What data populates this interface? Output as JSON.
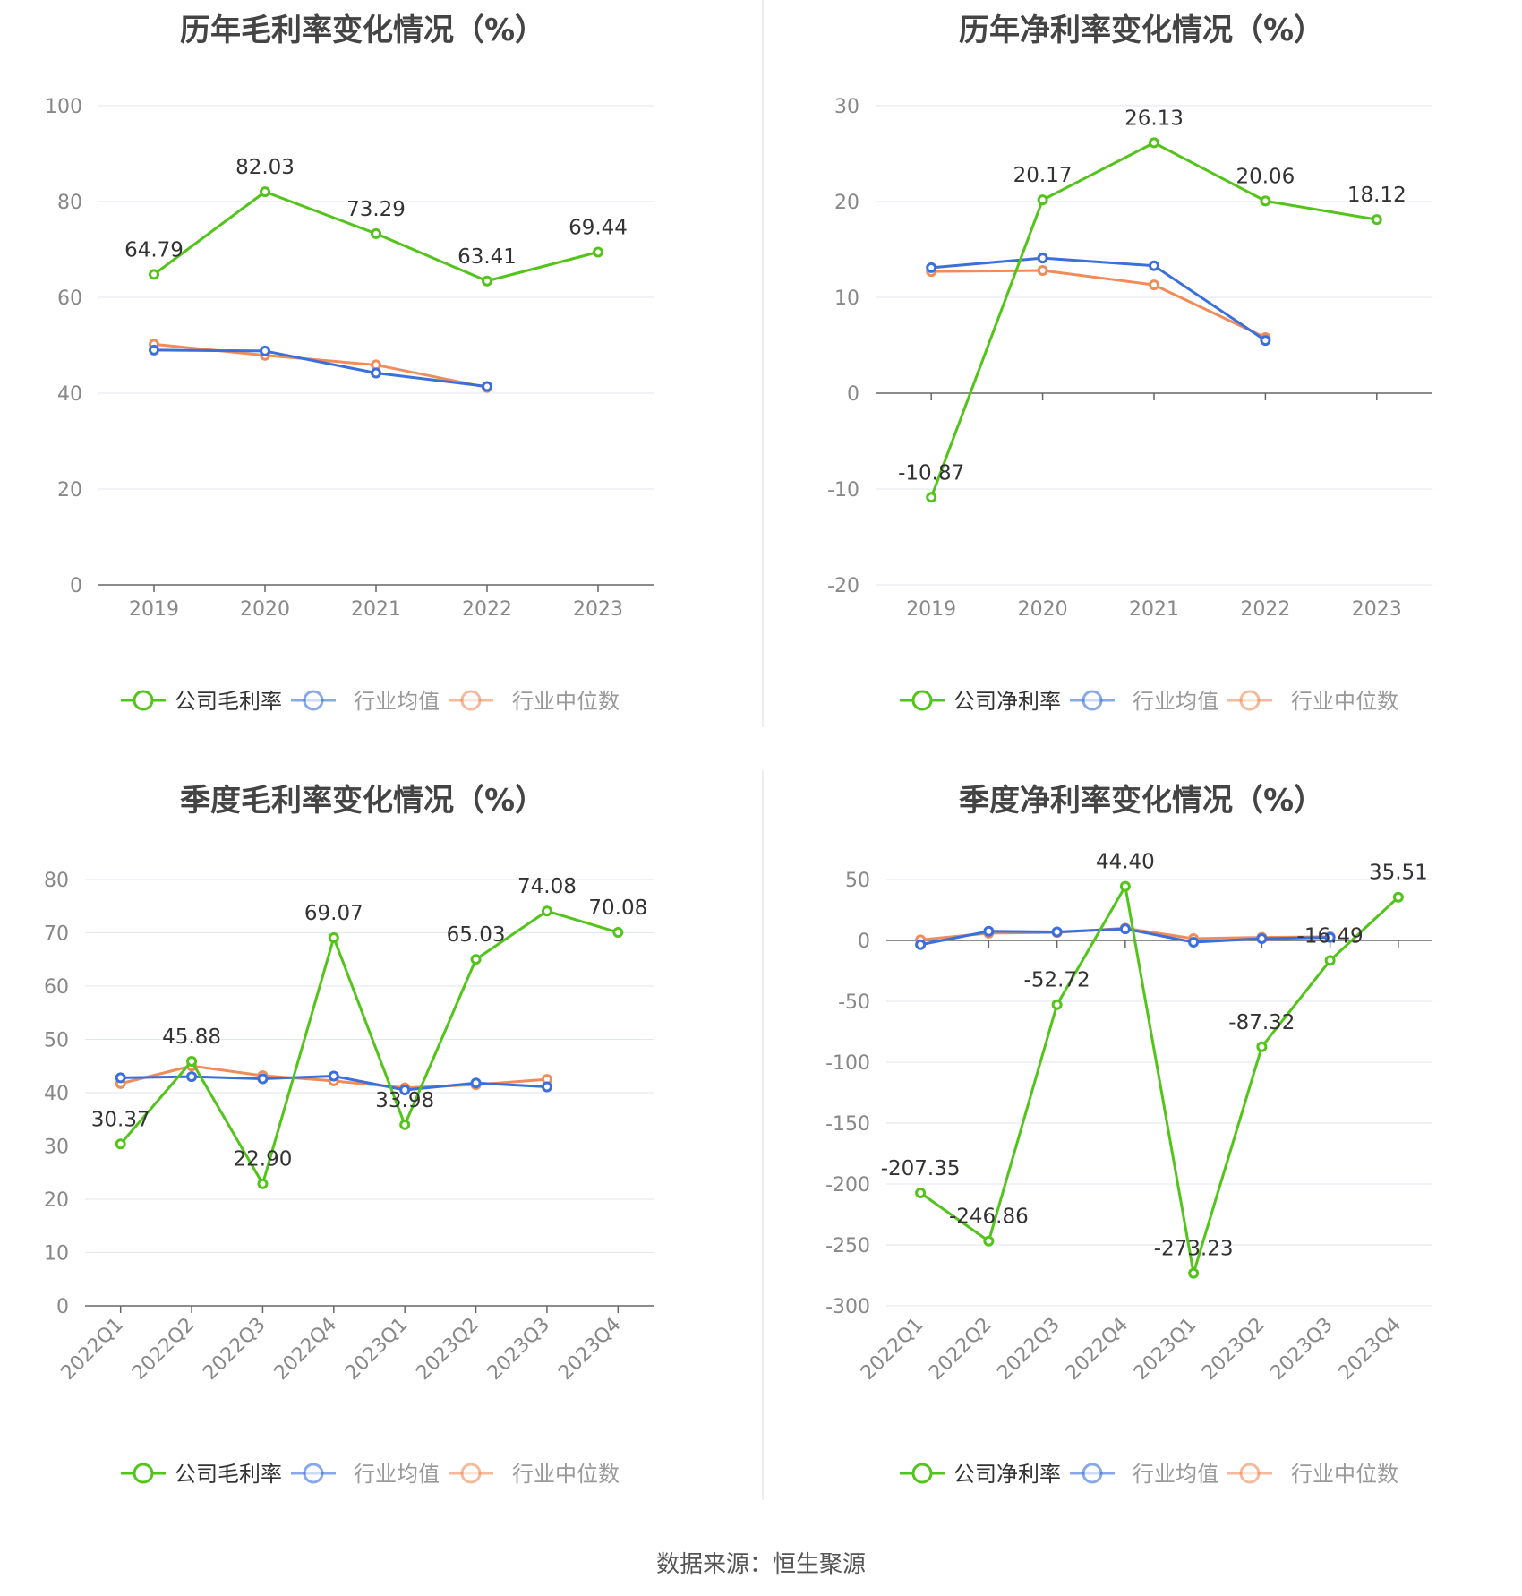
{
  "source": "数据来源：恒生聚源",
  "colors": {
    "company": "#52c41a",
    "avg": "#3a6fdc",
    "median": "#f08c5a",
    "grid": "#e2e6f0",
    "axis": "#666666"
  },
  "chart_data": [
    {
      "type": "line",
      "title": "历年毛利率变化情况（%）",
      "categories": [
        "2019",
        "2020",
        "2021",
        "2022",
        "2023"
      ],
      "ylim": [
        0,
        100
      ],
      "yticks": [
        0,
        20,
        40,
        60,
        80,
        100
      ],
      "grid": true,
      "legend_position": "bottom",
      "series": [
        {
          "name": "公司毛利率",
          "values": [
            64.79,
            82.03,
            73.29,
            63.41,
            69.44
          ],
          "labels": [
            "64.79",
            "82.03",
            "73.29",
            "63.41",
            "69.44"
          ]
        },
        {
          "name": "行业均值",
          "values": [
            49.0,
            48.8,
            44.2,
            41.4,
            null
          ]
        },
        {
          "name": "行业中位数",
          "values": [
            50.2,
            47.9,
            45.9,
            41.2,
            null
          ]
        }
      ]
    },
    {
      "type": "line",
      "title": "历年净利率变化情况（%）",
      "categories": [
        "2019",
        "2020",
        "2021",
        "2022",
        "2023"
      ],
      "ylim": [
        -20,
        30
      ],
      "yticks": [
        -20,
        -10,
        0,
        10,
        20,
        30
      ],
      "grid": true,
      "legend_position": "bottom",
      "series": [
        {
          "name": "公司净利率",
          "values": [
            -10.87,
            20.17,
            26.13,
            20.06,
            18.12
          ],
          "labels": [
            "-10.87",
            "20.17",
            "26.13",
            "20.06",
            "18.12"
          ]
        },
        {
          "name": "行业均值",
          "values": [
            13.1,
            14.1,
            13.3,
            5.5,
            null
          ]
        },
        {
          "name": "行业中位数",
          "values": [
            12.7,
            12.8,
            11.3,
            5.8,
            null
          ]
        }
      ]
    },
    {
      "type": "line",
      "title": "季度毛利率变化情况（%）",
      "categories": [
        "2022Q1",
        "2022Q2",
        "2022Q3",
        "2022Q4",
        "2023Q1",
        "2023Q2",
        "2023Q3",
        "2023Q4"
      ],
      "ylim": [
        0,
        80
      ],
      "yticks": [
        0,
        10,
        20,
        30,
        40,
        50,
        60,
        70,
        80
      ],
      "grid": true,
      "legend_position": "bottom",
      "series": [
        {
          "name": "公司毛利率",
          "values": [
            30.37,
            45.88,
            22.9,
            69.07,
            33.98,
            65.03,
            74.08,
            70.08
          ],
          "labels": [
            "30.37",
            "45.88",
            "22.90",
            "69.07",
            "33.98",
            "65.03",
            "74.08",
            "70.08"
          ]
        },
        {
          "name": "行业均值",
          "values": [
            42.8,
            43.0,
            42.6,
            43.1,
            40.5,
            41.8,
            41.1,
            null
          ]
        },
        {
          "name": "行业中位数",
          "values": [
            41.7,
            45.0,
            43.2,
            42.2,
            40.9,
            41.5,
            42.5,
            null
          ]
        }
      ]
    },
    {
      "type": "line",
      "title": "季度净利率变化情况（%）",
      "categories": [
        "2022Q1",
        "2022Q2",
        "2022Q3",
        "2022Q4",
        "2023Q1",
        "2023Q2",
        "2023Q3",
        "2023Q4"
      ],
      "ylim": [
        -300,
        50
      ],
      "yticks": [
        -300,
        -250,
        -200,
        -150,
        -100,
        -50,
        0,
        50
      ],
      "grid": true,
      "legend_position": "bottom",
      "series": [
        {
          "name": "公司净利率",
          "values": [
            -207.35,
            -246.86,
            -52.72,
            44.4,
            -273.23,
            -87.32,
            -16.49,
            35.51
          ],
          "labels": [
            "-207.35",
            "-246.86",
            "-52.72",
            "44.40",
            "-273.23",
            "-87.32",
            "-16.49",
            "35.51"
          ]
        },
        {
          "name": "行业均值",
          "values": [
            -3.5,
            7.5,
            7.0,
            9.5,
            -1.5,
            1.5,
            2.5,
            null
          ]
        },
        {
          "name": "行业中位数",
          "values": [
            0.5,
            6.0,
            6.5,
            10.0,
            1.5,
            2.5,
            3.0,
            null
          ]
        }
      ]
    }
  ]
}
